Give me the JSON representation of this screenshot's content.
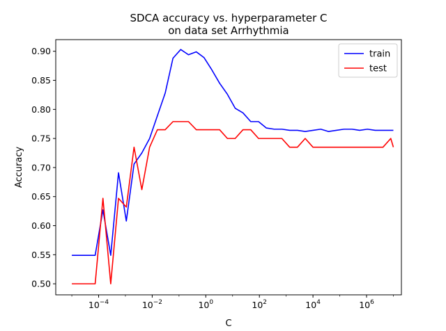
{
  "chart_data": {
    "type": "line",
    "title": "SDCA accuracy vs. hyperparameter C",
    "subtitle": "on data set Arrhythmia",
    "xlabel": "C",
    "ylabel": "Accuracy",
    "xscale": "log",
    "xlim_exp": [
      -5.6,
      7.3
    ],
    "ylim": [
      0.481,
      0.92
    ],
    "xtick_exponents": [
      -4,
      -2,
      0,
      2,
      4,
      6
    ],
    "yticks": [
      0.5,
      0.55,
      0.6,
      0.65,
      0.7,
      0.75,
      0.8,
      0.85,
      0.9
    ],
    "legend_position": "top-right",
    "series": [
      {
        "name": "train",
        "color": "#0000ff",
        "x": [
          1e-05,
          1.95e-05,
          3.81e-05,
          7.43e-05,
          0.000145,
          0.000283,
          0.000552,
          0.00108,
          0.0021,
          0.0041,
          0.008,
          0.0156,
          0.0305,
          0.0595,
          0.116,
          0.226,
          0.442,
          0.862,
          1.68,
          3.28,
          6.4,
          12.5,
          24.4,
          47.6,
          92.9,
          181,
          354,
          690,
          1350,
          2630,
          5130,
          10000,
          19500,
          38100,
          74300,
          145000,
          283000,
          552000,
          1080000,
          2100000,
          4100000,
          8000000,
          10000000
        ],
        "y": [
          0.549,
          0.549,
          0.549,
          0.549,
          0.627,
          0.549,
          0.691,
          0.608,
          0.706,
          0.725,
          0.75,
          0.789,
          0.828,
          0.888,
          0.903,
          0.894,
          0.899,
          0.889,
          0.868,
          0.845,
          0.826,
          0.802,
          0.794,
          0.779,
          0.779,
          0.768,
          0.766,
          0.766,
          0.764,
          0.764,
          0.762,
          0.764,
          0.766,
          0.762,
          0.764,
          0.766,
          0.766,
          0.764,
          0.766,
          0.764,
          0.764,
          0.764,
          0.764
        ]
      },
      {
        "name": "test",
        "color": "#ff0000",
        "x": [
          1e-05,
          1.95e-05,
          3.81e-05,
          7.43e-05,
          0.000145,
          0.000283,
          0.000552,
          0.00108,
          0.0021,
          0.0041,
          0.008,
          0.0156,
          0.0305,
          0.0595,
          0.116,
          0.226,
          0.442,
          0.862,
          1.68,
          3.28,
          6.4,
          12.5,
          24.4,
          47.6,
          92.9,
          181,
          354,
          690,
          1350,
          2630,
          5130,
          10000,
          19500,
          38100,
          74300,
          145000,
          283000,
          552000,
          1080000,
          2100000,
          4100000,
          8000000,
          10000000
        ],
        "y": [
          0.5,
          0.5,
          0.5,
          0.5,
          0.647,
          0.5,
          0.647,
          0.632,
          0.735,
          0.662,
          0.735,
          0.765,
          0.765,
          0.779,
          0.779,
          0.779,
          0.765,
          0.765,
          0.765,
          0.765,
          0.75,
          0.75,
          0.765,
          0.765,
          0.75,
          0.75,
          0.75,
          0.75,
          0.735,
          0.735,
          0.75,
          0.735,
          0.735,
          0.735,
          0.735,
          0.735,
          0.735,
          0.735,
          0.735,
          0.735,
          0.735,
          0.75,
          0.735
        ]
      }
    ]
  }
}
